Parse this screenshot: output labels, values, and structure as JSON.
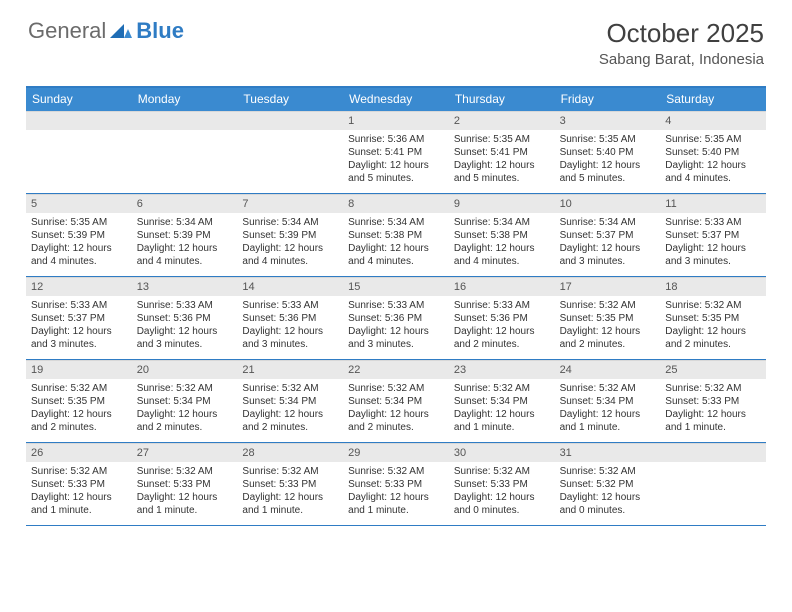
{
  "logo": {
    "text1": "General",
    "text2": "Blue"
  },
  "title": "October 2025",
  "location": "Sabang Barat, Indonesia",
  "colors": {
    "header_blue": "#3a8ad0",
    "rule_blue": "#2f7cc4",
    "daynum_bg": "#e9e9e9",
    "text": "#333333"
  },
  "weekdays": [
    "Sunday",
    "Monday",
    "Tuesday",
    "Wednesday",
    "Thursday",
    "Friday",
    "Saturday"
  ],
  "weeks": [
    [
      null,
      null,
      null,
      {
        "n": "1",
        "sr": "5:36 AM",
        "ss": "5:41 PM",
        "dl": "12 hours and 5 minutes."
      },
      {
        "n": "2",
        "sr": "5:35 AM",
        "ss": "5:41 PM",
        "dl": "12 hours and 5 minutes."
      },
      {
        "n": "3",
        "sr": "5:35 AM",
        "ss": "5:40 PM",
        "dl": "12 hours and 5 minutes."
      },
      {
        "n": "4",
        "sr": "5:35 AM",
        "ss": "5:40 PM",
        "dl": "12 hours and 4 minutes."
      }
    ],
    [
      {
        "n": "5",
        "sr": "5:35 AM",
        "ss": "5:39 PM",
        "dl": "12 hours and 4 minutes."
      },
      {
        "n": "6",
        "sr": "5:34 AM",
        "ss": "5:39 PM",
        "dl": "12 hours and 4 minutes."
      },
      {
        "n": "7",
        "sr": "5:34 AM",
        "ss": "5:39 PM",
        "dl": "12 hours and 4 minutes."
      },
      {
        "n": "8",
        "sr": "5:34 AM",
        "ss": "5:38 PM",
        "dl": "12 hours and 4 minutes."
      },
      {
        "n": "9",
        "sr": "5:34 AM",
        "ss": "5:38 PM",
        "dl": "12 hours and 4 minutes."
      },
      {
        "n": "10",
        "sr": "5:34 AM",
        "ss": "5:37 PM",
        "dl": "12 hours and 3 minutes."
      },
      {
        "n": "11",
        "sr": "5:33 AM",
        "ss": "5:37 PM",
        "dl": "12 hours and 3 minutes."
      }
    ],
    [
      {
        "n": "12",
        "sr": "5:33 AM",
        "ss": "5:37 PM",
        "dl": "12 hours and 3 minutes."
      },
      {
        "n": "13",
        "sr": "5:33 AM",
        "ss": "5:36 PM",
        "dl": "12 hours and 3 minutes."
      },
      {
        "n": "14",
        "sr": "5:33 AM",
        "ss": "5:36 PM",
        "dl": "12 hours and 3 minutes."
      },
      {
        "n": "15",
        "sr": "5:33 AM",
        "ss": "5:36 PM",
        "dl": "12 hours and 3 minutes."
      },
      {
        "n": "16",
        "sr": "5:33 AM",
        "ss": "5:36 PM",
        "dl": "12 hours and 2 minutes."
      },
      {
        "n": "17",
        "sr": "5:32 AM",
        "ss": "5:35 PM",
        "dl": "12 hours and 2 minutes."
      },
      {
        "n": "18",
        "sr": "5:32 AM",
        "ss": "5:35 PM",
        "dl": "12 hours and 2 minutes."
      }
    ],
    [
      {
        "n": "19",
        "sr": "5:32 AM",
        "ss": "5:35 PM",
        "dl": "12 hours and 2 minutes."
      },
      {
        "n": "20",
        "sr": "5:32 AM",
        "ss": "5:34 PM",
        "dl": "12 hours and 2 minutes."
      },
      {
        "n": "21",
        "sr": "5:32 AM",
        "ss": "5:34 PM",
        "dl": "12 hours and 2 minutes."
      },
      {
        "n": "22",
        "sr": "5:32 AM",
        "ss": "5:34 PM",
        "dl": "12 hours and 2 minutes."
      },
      {
        "n": "23",
        "sr": "5:32 AM",
        "ss": "5:34 PM",
        "dl": "12 hours and 1 minute."
      },
      {
        "n": "24",
        "sr": "5:32 AM",
        "ss": "5:34 PM",
        "dl": "12 hours and 1 minute."
      },
      {
        "n": "25",
        "sr": "5:32 AM",
        "ss": "5:33 PM",
        "dl": "12 hours and 1 minute."
      }
    ],
    [
      {
        "n": "26",
        "sr": "5:32 AM",
        "ss": "5:33 PM",
        "dl": "12 hours and 1 minute."
      },
      {
        "n": "27",
        "sr": "5:32 AM",
        "ss": "5:33 PM",
        "dl": "12 hours and 1 minute."
      },
      {
        "n": "28",
        "sr": "5:32 AM",
        "ss": "5:33 PM",
        "dl": "12 hours and 1 minute."
      },
      {
        "n": "29",
        "sr": "5:32 AM",
        "ss": "5:33 PM",
        "dl": "12 hours and 1 minute."
      },
      {
        "n": "30",
        "sr": "5:32 AM",
        "ss": "5:33 PM",
        "dl": "12 hours and 0 minutes."
      },
      {
        "n": "31",
        "sr": "5:32 AM",
        "ss": "5:32 PM",
        "dl": "12 hours and 0 minutes."
      },
      null
    ]
  ],
  "labels": {
    "sunrise": "Sunrise:",
    "sunset": "Sunset:",
    "daylight": "Daylight:"
  }
}
